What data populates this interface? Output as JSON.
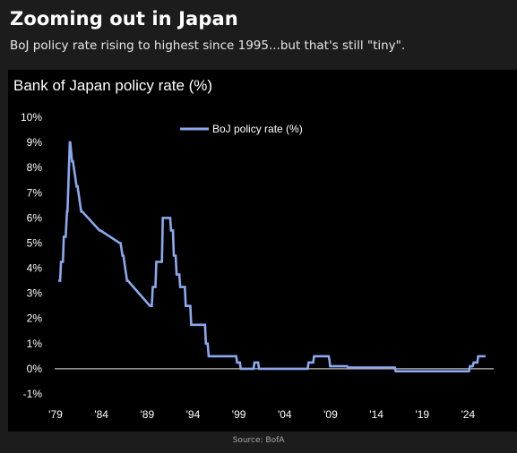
{
  "header": {
    "title": "Zooming out in Japan",
    "subtitle": "BoJ policy rate rising to highest since 1995...but that's still \"tiny\"."
  },
  "footer": {
    "source": "Source: BofA"
  },
  "colors": {
    "series": "#8ba9ee",
    "zero_line": "#bfbfbf",
    "panel_bg": "#000000",
    "card_bg": "#1c1c1c"
  },
  "chart_data": {
    "type": "line",
    "title": "Bank of Japan policy rate (%)",
    "xlabel": "",
    "ylabel": "",
    "xlim": [
      1979,
      2026.5
    ],
    "ylim": [
      -1,
      10
    ],
    "grid": false,
    "legend_position": "top-center",
    "x_ticks": [
      1979,
      1984,
      1989,
      1994,
      1999,
      2004,
      2009,
      2014,
      2019,
      2024
    ],
    "x_tick_labels": [
      "'79",
      "'84",
      "'89",
      "'94",
      "'99",
      "'04",
      "'09",
      "'14",
      "'19",
      "'24"
    ],
    "y_ticks": [
      -1,
      0,
      1,
      2,
      3,
      4,
      5,
      6,
      7,
      8,
      9,
      10
    ],
    "y_tick_labels": [
      "-1%",
      "0%",
      "1%",
      "2%",
      "3%",
      "4%",
      "5%",
      "6%",
      "7%",
      "8%",
      "9%",
      "10%"
    ],
    "series": [
      {
        "name": "BoJ policy rate (%)",
        "x": [
          1979.3,
          1979.5,
          1979.6,
          1979.8,
          1979.9,
          1980.1,
          1980.25,
          1980.3,
          1980.55,
          1980.6,
          1980.8,
          1980.9,
          1981.3,
          1981.4,
          1981.8,
          1981.9,
          1983.8,
          1983.9,
          1986.0,
          1986.1,
          1986.3,
          1986.4,
          1986.8,
          1986.9,
          1989.3,
          1989.4,
          1989.5,
          1989.6,
          1989.9,
          1990.0,
          1990.6,
          1990.7,
          1991.5,
          1991.6,
          1991.8,
          1991.9,
          1992.1,
          1992.2,
          1992.5,
          1992.6,
          1993.1,
          1993.2,
          1993.7,
          1993.8,
          1995.3,
          1995.4,
          1995.6,
          1995.7,
          1998.7,
          1998.8,
          1999.1,
          1999.2,
          2000.6,
          2000.7,
          2001.1,
          2001.2,
          2006.5,
          2006.6,
          2007.1,
          2007.2,
          2008.8,
          2008.9,
          2008.95,
          2010.8,
          2010.9,
          2016.0,
          2016.1,
          2024.1,
          2024.2,
          2024.5,
          2024.6,
          2025.0,
          2025.1,
          2025.9
        ],
        "values": [
          3.5,
          3.5,
          4.25,
          4.25,
          5.25,
          5.25,
          6.25,
          6.25,
          9.0,
          9.0,
          8.25,
          8.25,
          7.25,
          7.25,
          6.25,
          6.25,
          5.5,
          5.5,
          5.0,
          5.0,
          4.5,
          4.5,
          3.5,
          3.5,
          2.5,
          2.5,
          2.5,
          3.25,
          3.25,
          4.25,
          4.25,
          6.0,
          6.0,
          5.5,
          5.5,
          4.5,
          4.5,
          3.75,
          3.75,
          3.25,
          3.25,
          2.5,
          2.5,
          1.75,
          1.75,
          1.0,
          1.0,
          0.5,
          0.5,
          0.25,
          0.25,
          0.0,
          0.0,
          0.25,
          0.25,
          0.0,
          0.0,
          0.25,
          0.25,
          0.5,
          0.5,
          0.3,
          0.1,
          0.1,
          0.05,
          0.05,
          -0.1,
          -0.1,
          0.1,
          0.1,
          0.25,
          0.25,
          0.5,
          0.5
        ]
      }
    ]
  }
}
